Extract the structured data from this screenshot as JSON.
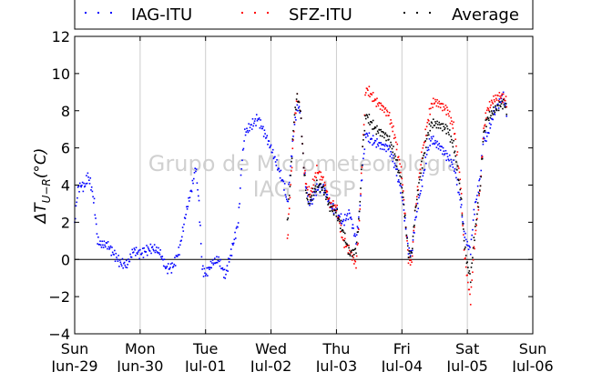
{
  "chart_data": {
    "type": "scatter",
    "title": "",
    "xlabel": "",
    "ylabel": "ΔT_{U−R} (°C)",
    "ylabel_main": "ΔT",
    "ylabel_sub": "U−R",
    "ylabel_unit": "(°C)",
    "ylim": [
      -4,
      12
    ],
    "xlim_days": [
      0,
      7
    ],
    "x_ticks": [
      {
        "day": "Sun",
        "date": "Jun-29"
      },
      {
        "day": "Mon",
        "date": "Jun-30"
      },
      {
        "day": "Tue",
        "date": "Jul-01"
      },
      {
        "day": "Wed",
        "date": "Jul-02"
      },
      {
        "day": "Thu",
        "date": "Jul-03"
      },
      {
        "day": "Fri",
        "date": "Jul-04"
      },
      {
        "day": "Sat",
        "date": "Jul-05"
      },
      {
        "day": "Sun",
        "date": "Jul-06"
      }
    ],
    "y_ticks": [
      -4,
      -2,
      0,
      2,
      4,
      6,
      8,
      10,
      12
    ],
    "grid": "vertical",
    "zero_line": true,
    "legend_position": "top",
    "watermark": [
      "Grupo de Micrometeorologia",
      "IAG - USP"
    ],
    "series": [
      {
        "name": "IAG-ITU",
        "color": "#0000ff",
        "keypoints": [
          [
            0.0,
            2.0
          ],
          [
            0.05,
            3.8
          ],
          [
            0.1,
            4.0
          ],
          [
            0.15,
            3.9
          ],
          [
            0.2,
            4.5
          ],
          [
            0.25,
            4.0
          ],
          [
            0.3,
            3.0
          ],
          [
            0.35,
            1.0
          ],
          [
            0.4,
            0.8
          ],
          [
            0.5,
            0.8
          ],
          [
            0.6,
            0.3
          ],
          [
            0.7,
            -0.2
          ],
          [
            0.8,
            -0.3
          ],
          [
            0.9,
            0.5
          ],
          [
            1.0,
            0.3
          ],
          [
            1.1,
            0.5
          ],
          [
            1.2,
            0.6
          ],
          [
            1.3,
            0.4
          ],
          [
            1.4,
            -0.5
          ],
          [
            1.5,
            -0.4
          ],
          [
            1.6,
            0.5
          ],
          [
            1.7,
            2.5
          ],
          [
            1.8,
            4.0
          ],
          [
            1.85,
            5.0
          ],
          [
            1.9,
            3.0
          ],
          [
            1.95,
            -0.5
          ],
          [
            2.0,
            -0.8
          ],
          [
            2.1,
            -0.2
          ],
          [
            2.2,
            0.0
          ],
          [
            2.3,
            -0.9
          ],
          [
            2.4,
            0.5
          ],
          [
            2.5,
            2.0
          ],
          [
            2.55,
            5.0
          ],
          [
            2.6,
            6.8
          ],
          [
            2.7,
            7.2
          ],
          [
            2.8,
            7.6
          ],
          [
            2.9,
            6.8
          ],
          [
            3.0,
            6.0
          ],
          [
            3.1,
            5.0
          ],
          [
            3.2,
            4.0
          ],
          [
            3.25,
            3.0
          ],
          [
            3.3,
            5.0
          ],
          [
            3.35,
            7.0
          ],
          [
            3.4,
            8.2
          ],
          [
            3.45,
            8.0
          ],
          [
            3.5,
            5.0
          ],
          [
            3.55,
            3.5
          ],
          [
            3.6,
            3.0
          ],
          [
            3.7,
            3.8
          ],
          [
            3.8,
            3.9
          ],
          [
            3.9,
            3.0
          ],
          [
            4.0,
            2.5
          ],
          [
            4.1,
            2.0
          ],
          [
            4.2,
            2.5
          ],
          [
            4.3,
            1.0
          ],
          [
            4.35,
            2.5
          ],
          [
            4.4,
            5.0
          ],
          [
            4.45,
            6.8
          ],
          [
            4.5,
            6.5
          ],
          [
            4.6,
            6.3
          ],
          [
            4.7,
            6.1
          ],
          [
            4.8,
            6.0
          ],
          [
            4.9,
            5.0
          ],
          [
            5.0,
            3.5
          ],
          [
            5.1,
            0.5
          ],
          [
            5.15,
            0.3
          ],
          [
            5.2,
            2.0
          ],
          [
            5.3,
            4.0
          ],
          [
            5.4,
            6.0
          ],
          [
            5.45,
            6.5
          ],
          [
            5.5,
            6.3
          ],
          [
            5.6,
            6.0
          ],
          [
            5.7,
            5.5
          ],
          [
            5.8,
            5.0
          ],
          [
            5.9,
            3.0
          ],
          [
            5.95,
            1.5
          ],
          [
            6.0,
            0.8
          ],
          [
            6.05,
            0.5
          ],
          [
            6.1,
            2.5
          ],
          [
            6.2,
            4.5
          ],
          [
            6.25,
            6.5
          ],
          [
            6.3,
            6.6
          ],
          [
            6.4,
            7.8
          ],
          [
            6.5,
            8.5
          ],
          [
            6.55,
            8.8
          ],
          [
            6.6,
            8.0
          ]
        ]
      },
      {
        "name": "SFZ-ITU",
        "color": "#ff0000",
        "keypoints": [
          [
            3.25,
            1.0
          ],
          [
            3.3,
            4.0
          ],
          [
            3.35,
            7.0
          ],
          [
            3.4,
            8.8
          ],
          [
            3.45,
            8.0
          ],
          [
            3.5,
            5.0
          ],
          [
            3.55,
            3.8
          ],
          [
            3.6,
            3.5
          ],
          [
            3.7,
            4.8
          ],
          [
            3.8,
            4.3
          ],
          [
            3.9,
            3.0
          ],
          [
            4.0,
            2.8
          ],
          [
            4.1,
            1.0
          ],
          [
            4.2,
            0.5
          ],
          [
            4.3,
            -0.3
          ],
          [
            4.35,
            2.0
          ],
          [
            4.4,
            6.0
          ],
          [
            4.45,
            9.2
          ],
          [
            4.5,
            9.0
          ],
          [
            4.6,
            8.5
          ],
          [
            4.7,
            8.2
          ],
          [
            4.8,
            7.8
          ],
          [
            4.9,
            6.5
          ],
          [
            5.0,
            4.5
          ],
          [
            5.1,
            0.0
          ],
          [
            5.15,
            -0.2
          ],
          [
            5.2,
            2.5
          ],
          [
            5.3,
            5.5
          ],
          [
            5.4,
            7.5
          ],
          [
            5.45,
            8.3
          ],
          [
            5.5,
            8.5
          ],
          [
            5.6,
            8.3
          ],
          [
            5.7,
            8.0
          ],
          [
            5.8,
            7.0
          ],
          [
            5.9,
            4.0
          ],
          [
            5.95,
            0.5
          ],
          [
            6.0,
            -1.0
          ],
          [
            6.05,
            -2.2
          ],
          [
            6.1,
            0.5
          ],
          [
            6.2,
            4.0
          ],
          [
            6.25,
            7.0
          ],
          [
            6.3,
            8.0
          ],
          [
            6.4,
            8.6
          ],
          [
            6.5,
            8.8
          ],
          [
            6.55,
            8.7
          ],
          [
            6.6,
            8.5
          ]
        ]
      },
      {
        "name": "Average",
        "color": "#000000",
        "keypoints": [
          [
            3.25,
            2.0
          ],
          [
            3.3,
            4.5
          ],
          [
            3.35,
            7.5
          ],
          [
            3.4,
            8.8
          ],
          [
            3.45,
            8.0
          ],
          [
            3.5,
            5.0
          ],
          [
            3.55,
            3.2
          ],
          [
            3.6,
            3.2
          ],
          [
            3.7,
            4.0
          ],
          [
            3.8,
            3.8
          ],
          [
            3.9,
            2.8
          ],
          [
            4.0,
            2.5
          ],
          [
            4.1,
            1.5
          ],
          [
            4.2,
            0.3
          ],
          [
            4.3,
            0.5
          ],
          [
            4.35,
            2.5
          ],
          [
            4.4,
            6.0
          ],
          [
            4.45,
            7.8
          ],
          [
            4.5,
            7.5
          ],
          [
            4.6,
            7.0
          ],
          [
            4.7,
            6.8
          ],
          [
            4.8,
            6.5
          ],
          [
            4.9,
            5.5
          ],
          [
            5.0,
            4.0
          ],
          [
            5.1,
            0.3
          ],
          [
            5.15,
            0.3
          ],
          [
            5.2,
            2.5
          ],
          [
            5.3,
            5.0
          ],
          [
            5.4,
            6.8
          ],
          [
            5.45,
            7.3
          ],
          [
            5.5,
            7.3
          ],
          [
            5.6,
            7.2
          ],
          [
            5.7,
            7.0
          ],
          [
            5.8,
            6.0
          ],
          [
            5.9,
            3.5
          ],
          [
            5.95,
            1.0
          ],
          [
            6.0,
            -0.3
          ],
          [
            6.05,
            -1.0
          ],
          [
            6.1,
            1.0
          ],
          [
            6.2,
            4.0
          ],
          [
            6.25,
            6.8
          ],
          [
            6.3,
            7.5
          ],
          [
            6.4,
            8.0
          ],
          [
            6.5,
            8.3
          ],
          [
            6.55,
            8.4
          ],
          [
            6.6,
            8.1
          ]
        ]
      }
    ]
  }
}
